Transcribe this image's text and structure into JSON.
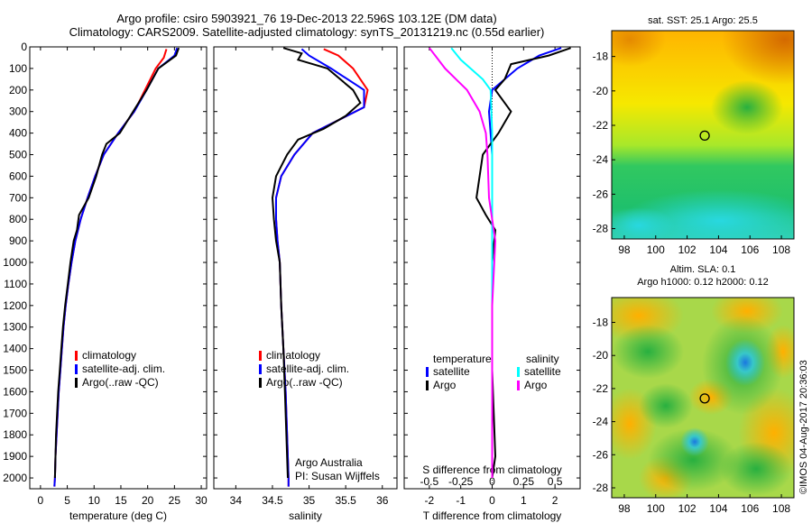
{
  "header": {
    "line1": "Argo profile: csiro 5903921_76 19-Dec-2013 22.596S 103.12E (DM data)",
    "line2": "Climatology: CARS2009. Satellite-adjusted climatology: synTS_20131219.nc (0.55d earlier)"
  },
  "colors": {
    "climatology": "#ff0000",
    "satellite": "#0000ff",
    "argo": "#000000",
    "sat_salinity": "#00ffff",
    "argo_salinity": "#ff00ff"
  },
  "chart_data": [
    {
      "type": "line",
      "xlabel": "temperature (deg C)",
      "xlim": [
        -2,
        31
      ],
      "xticks": [
        0,
        5,
        10,
        15,
        20,
        25,
        30
      ],
      "ylim": [
        2050,
        0
      ],
      "yticks": [
        0,
        100,
        200,
        300,
        400,
        500,
        600,
        700,
        800,
        900,
        1000,
        1100,
        1200,
        1300,
        1400,
        1500,
        1600,
        1700,
        1800,
        1900,
        2000
      ],
      "legend": [
        "climatology",
        "satellite-adj. clim.",
        "Argo(..raw -QC)"
      ],
      "series": [
        {
          "name": "climatology",
          "color": "#ff0000",
          "points": [
            [
              23.5,
              10
            ],
            [
              23,
              50
            ],
            [
              21.5,
              100
            ],
            [
              19.5,
              200
            ],
            [
              17.5,
              300
            ],
            [
              14.5,
              400
            ],
            [
              11.8,
              500
            ],
            [
              10.2,
              600
            ],
            [
              8.8,
              700
            ],
            [
              7.5,
              800
            ],
            [
              6.5,
              900
            ],
            [
              5.8,
              1000
            ],
            [
              5.2,
              1100
            ],
            [
              4.7,
              1200
            ],
            [
              4.3,
              1300
            ],
            [
              4.0,
              1400
            ],
            [
              3.7,
              1500
            ],
            [
              3.4,
              1600
            ],
            [
              3.2,
              1700
            ],
            [
              3.0,
              1800
            ],
            [
              2.8,
              1900
            ],
            [
              2.7,
              2000
            ],
            [
              2.6,
              2040
            ]
          ]
        },
        {
          "name": "satellite-adj. clim.",
          "color": "#0000ff",
          "points": [
            [
              25.5,
              5
            ],
            [
              25,
              40
            ],
            [
              22,
              100
            ],
            [
              19.8,
              200
            ],
            [
              17.5,
              300
            ],
            [
              14.5,
              400
            ],
            [
              11.8,
              500
            ],
            [
              10.2,
              600
            ],
            [
              8.8,
              700
            ],
            [
              7.5,
              800
            ],
            [
              6.5,
              900
            ],
            [
              5.8,
              1000
            ],
            [
              5.2,
              1100
            ],
            [
              4.7,
              1200
            ],
            [
              4.3,
              1300
            ],
            [
              4.0,
              1400
            ],
            [
              3.7,
              1500
            ],
            [
              3.4,
              1600
            ],
            [
              3.2,
              1700
            ],
            [
              3.0,
              1800
            ],
            [
              2.8,
              1900
            ],
            [
              2.7,
              2000
            ],
            [
              2.6,
              2040
            ]
          ]
        },
        {
          "name": "Argo(..raw -QC)",
          "color": "#000000",
          "points": [
            [
              25.8,
              5
            ],
            [
              25.3,
              40
            ],
            [
              22,
              100
            ],
            [
              19.8,
              200
            ],
            [
              17.3,
              300
            ],
            [
              14.8,
              400
            ],
            [
              12.3,
              450
            ],
            [
              11.5,
              500
            ],
            [
              10.4,
              600
            ],
            [
              9.0,
              700
            ],
            [
              7.2,
              780
            ],
            [
              6.8,
              850
            ],
            [
              6.2,
              900
            ],
            [
              5.6,
              1000
            ],
            [
              5.1,
              1100
            ],
            [
              4.6,
              1200
            ],
            [
              4.2,
              1300
            ],
            [
              3.9,
              1400
            ],
            [
              3.6,
              1500
            ],
            [
              3.3,
              1600
            ],
            [
              3.1,
              1700
            ],
            [
              2.9,
              1800
            ],
            [
              2.8,
              1900
            ],
            [
              2.7,
              2000
            ]
          ]
        }
      ]
    },
    {
      "type": "line",
      "xlabel": "salinity",
      "xlim": [
        33.7,
        36.2
      ],
      "xticks": [
        34,
        34.5,
        35,
        35.5,
        36
      ],
      "ylim": [
        2050,
        0
      ],
      "legend": [
        "climatology",
        "satellite-adj. clim.",
        "Argo(..raw -QC)"
      ],
      "notes": [
        "Argo Australia",
        "PI: Susan Wijffels"
      ],
      "series": [
        {
          "name": "climatology",
          "color": "#ff0000",
          "points": [
            [
              35.2,
              10
            ],
            [
              35.4,
              40
            ],
            [
              35.6,
              100
            ],
            [
              35.8,
              200
            ],
            [
              35.75,
              280
            ],
            [
              35.4,
              340
            ],
            [
              35.05,
              400
            ],
            [
              34.8,
              500
            ],
            [
              34.62,
              600
            ],
            [
              34.55,
              700
            ],
            [
              34.55,
              800
            ],
            [
              34.57,
              900
            ],
            [
              34.6,
              1000
            ],
            [
              34.62,
              1200
            ],
            [
              34.65,
              1400
            ],
            [
              34.68,
              1600
            ],
            [
              34.7,
              1800
            ],
            [
              34.72,
              2000
            ],
            [
              34.72,
              2040
            ]
          ]
        },
        {
          "name": "satellite-adj. clim.",
          "color": "#0000ff",
          "points": [
            [
              34.9,
              10
            ],
            [
              35.0,
              40
            ],
            [
              35.3,
              100
            ],
            [
              35.75,
              200
            ],
            [
              35.75,
              280
            ],
            [
              35.4,
              340
            ],
            [
              35.05,
              400
            ],
            [
              34.8,
              500
            ],
            [
              34.62,
              600
            ],
            [
              34.55,
              700
            ],
            [
              34.55,
              800
            ],
            [
              34.57,
              900
            ],
            [
              34.6,
              1000
            ],
            [
              34.62,
              1200
            ],
            [
              34.65,
              1400
            ],
            [
              34.68,
              1600
            ],
            [
              34.7,
              1800
            ],
            [
              34.72,
              2000
            ],
            [
              34.72,
              2040
            ]
          ]
        },
        {
          "name": "Argo(..raw -QC)",
          "color": "#000000",
          "points": [
            [
              34.65,
              5
            ],
            [
              34.9,
              30
            ],
            [
              34.85,
              60
            ],
            [
              35.25,
              100
            ],
            [
              35.6,
              200
            ],
            [
              35.7,
              260
            ],
            [
              35.5,
              320
            ],
            [
              35.2,
              380
            ],
            [
              34.85,
              430
            ],
            [
              34.7,
              500
            ],
            [
              34.55,
              600
            ],
            [
              34.5,
              700
            ],
            [
              34.52,
              800
            ],
            [
              34.55,
              900
            ],
            [
              34.6,
              1000
            ],
            [
              34.62,
              1200
            ],
            [
              34.65,
              1400
            ],
            [
              34.67,
              1600
            ],
            [
              34.69,
              1800
            ],
            [
              34.71,
              2000
            ]
          ]
        }
      ]
    },
    {
      "type": "line",
      "xlabel": "T difference from climatology",
      "x2label": "S difference from climatology",
      "xlim": [
        -2.8,
        2.8
      ],
      "xticks": [
        -2,
        -1,
        0,
        1,
        2
      ],
      "x2ticks": [
        -0.5,
        -0.25,
        0,
        0.25,
        0.5
      ],
      "x2tick_labels": [
        "-0.5",
        "-0.25",
        "0",
        "0.25",
        "0.5"
      ],
      "ylim": [
        2050,
        0
      ],
      "legend": {
        "temperature": [
          "satellite",
          "Argo"
        ],
        "salinity": [
          "satellite",
          "Argo"
        ]
      },
      "series": [
        {
          "name": "satellite",
          "group": "temperature",
          "color": "#0000ff",
          "points": [
            [
              2.2,
              5
            ],
            [
              1.5,
              40
            ],
            [
              0.8,
              100
            ],
            [
              0,
              200
            ],
            [
              -0.1,
              300
            ],
            [
              0,
              500
            ],
            [
              0,
              1000
            ],
            [
              0,
              1500
            ],
            [
              0,
              2000
            ]
          ]
        },
        {
          "name": "Argo",
          "group": "temperature",
          "color": "#000000",
          "points": [
            [
              2.5,
              5
            ],
            [
              1.8,
              40
            ],
            [
              0.6,
              80
            ],
            [
              0.4,
              150
            ],
            [
              0.1,
              200
            ],
            [
              0.6,
              300
            ],
            [
              0.2,
              400
            ],
            [
              -0.3,
              500
            ],
            [
              -0.4,
              600
            ],
            [
              -0.5,
              700
            ],
            [
              -0.2,
              780
            ],
            [
              0.1,
              850
            ],
            [
              0,
              1000
            ],
            [
              0,
              1500
            ],
            [
              0.1,
              1900
            ],
            [
              0,
              2000
            ]
          ]
        },
        {
          "name": "satellite",
          "group": "salinity",
          "color": "#00ffff",
          "points": [
            [
              -1.3,
              5
            ],
            [
              -1.0,
              60
            ],
            [
              -0.3,
              150
            ],
            [
              -0.05,
              200
            ],
            [
              0,
              400
            ],
            [
              0,
              800
            ],
            [
              0,
              1200
            ],
            [
              0,
              1600
            ],
            [
              0,
              2000
            ]
          ]
        },
        {
          "name": "Argo",
          "group": "salinity",
          "color": "#ff00ff",
          "points": [
            [
              -2.0,
              5
            ],
            [
              -1.5,
              100
            ],
            [
              -0.8,
              200
            ],
            [
              -0.4,
              300
            ],
            [
              -0.2,
              400
            ],
            [
              -0.15,
              500
            ],
            [
              -0.1,
              700
            ],
            [
              0.1,
              900
            ],
            [
              0,
              1200
            ],
            [
              0,
              2000
            ]
          ]
        }
      ]
    },
    {
      "type": "heatmap",
      "title": "sat. SST: 25.1  Argo: 25.5",
      "xticks": [
        98,
        100,
        102,
        104,
        106,
        108
      ],
      "yticks": [
        -18,
        -20,
        -22,
        -24,
        -26,
        -28
      ],
      "marker": [
        103.12,
        -22.596
      ]
    },
    {
      "type": "heatmap",
      "title_lines": [
        "Altim. SLA: 0.1",
        "Argo h1000: 0.12  h2000: 0.12"
      ],
      "xticks": [
        98,
        100,
        102,
        104,
        106,
        108
      ],
      "yticks": [
        -18,
        -20,
        -22,
        -24,
        -26,
        -28
      ],
      "marker": [
        103.12,
        -22.596
      ]
    }
  ],
  "footer": {
    "credit": "©IMOS 04-Aug-2017 20:36:03"
  }
}
